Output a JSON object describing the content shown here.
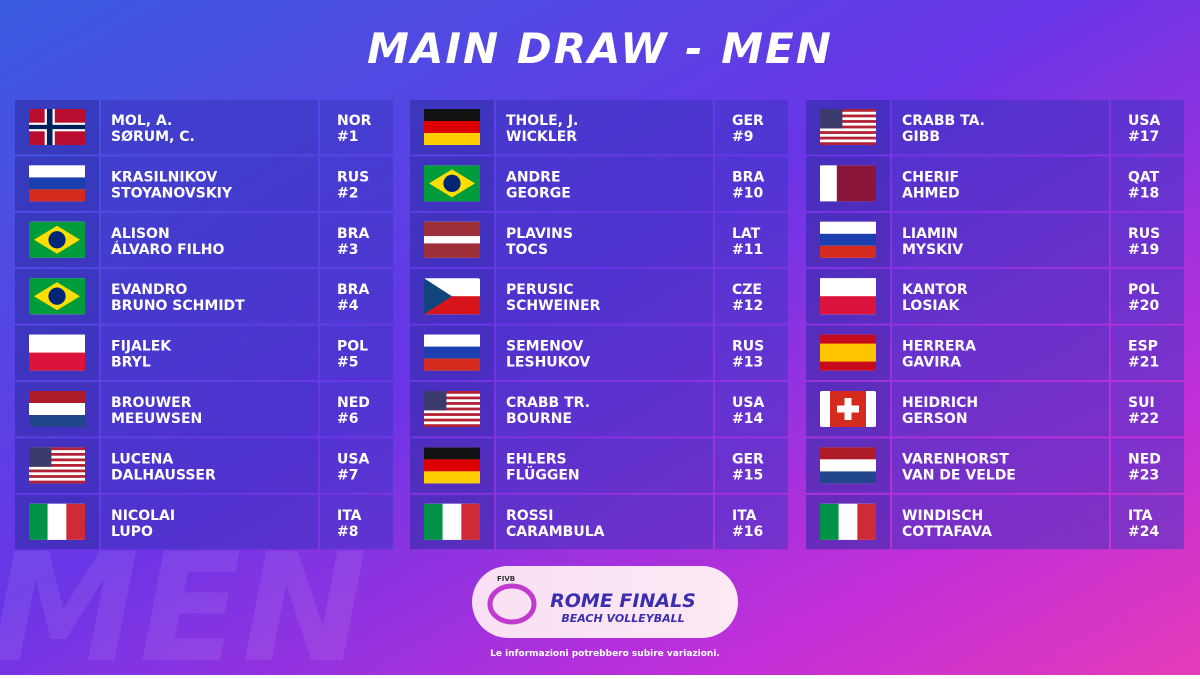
{
  "header": {
    "title": "MAIN DRAW - MEN"
  },
  "columns": [
    {
      "entries": [
        {
          "country": "NOR",
          "seed": "#1",
          "players": [
            "MOL, A.",
            "SØRUM, C."
          ]
        },
        {
          "country": "RUS",
          "seed": "#2",
          "players": [
            "KRASILNIKOV",
            "STOYANOVSKIY"
          ]
        },
        {
          "country": "BRA",
          "seed": "#3",
          "players": [
            "ALISON",
            "ÁLVARO FILHO"
          ]
        },
        {
          "country": "BRA",
          "seed": "#4",
          "players": [
            "EVANDRO",
            "BRUNO SCHMIDT"
          ]
        },
        {
          "country": "POL",
          "seed": "#5",
          "players": [
            "FIJALEK",
            "BRYL"
          ]
        },
        {
          "country": "NED",
          "seed": "#6",
          "players": [
            "BROUWER",
            "MEEUWSEN"
          ]
        },
        {
          "country": "USA",
          "seed": "#7",
          "players": [
            "LUCENA",
            "DALHAUSSER"
          ]
        },
        {
          "country": "ITA",
          "seed": "#8",
          "players": [
            "NICOLAI",
            "LUPO"
          ]
        }
      ]
    },
    {
      "entries": [
        {
          "country": "GER",
          "seed": "#9",
          "players": [
            "THOLE, J.",
            "WICKLER"
          ]
        },
        {
          "country": "BRA",
          "seed": "#10",
          "players": [
            "ANDRE",
            "GEORGE"
          ]
        },
        {
          "country": "LAT",
          "seed": "#11",
          "players": [
            "PLAVINS",
            "TOCS"
          ]
        },
        {
          "country": "CZE",
          "seed": "#12",
          "players": [
            "PERUSIC",
            "SCHWEINER"
          ]
        },
        {
          "country": "RUS",
          "seed": "#13",
          "players": [
            "SEMENOV",
            "LESHUKOV"
          ]
        },
        {
          "country": "USA",
          "seed": "#14",
          "players": [
            "CRABB TR.",
            "BOURNE"
          ]
        },
        {
          "country": "GER",
          "seed": "#15",
          "players": [
            "EHLERS",
            "FLÜGGEN"
          ]
        },
        {
          "country": "ITA",
          "seed": "#16",
          "players": [
            "ROSSI",
            "CARAMBULA"
          ]
        }
      ]
    },
    {
      "entries": [
        {
          "country": "USA",
          "seed": "#17",
          "players": [
            "CRABB TA.",
            "GIBB"
          ]
        },
        {
          "country": "QAT",
          "seed": "#18",
          "players": [
            "CHERIF",
            "AHMED"
          ]
        },
        {
          "country": "RUS",
          "seed": "#19",
          "players": [
            "LIAMIN",
            "MYSKIV"
          ]
        },
        {
          "country": "POL",
          "seed": "#20",
          "players": [
            "KANTOR",
            "LOSIAK"
          ]
        },
        {
          "country": "ESP",
          "seed": "#21",
          "players": [
            "HERRERA",
            "GAVIRA"
          ]
        },
        {
          "country": "SUI",
          "seed": "#22",
          "players": [
            "HEIDRICH",
            "GERSON"
          ]
        },
        {
          "country": "NED",
          "seed": "#23",
          "players": [
            "VARENHORST",
            "VAN DE VELDE"
          ]
        },
        {
          "country": "ITA",
          "seed": "#24",
          "players": [
            "WINDISCH",
            "COTTAFAVA"
          ]
        }
      ]
    }
  ],
  "logo": {
    "org": "FIVB",
    "name": "ROME FINALS",
    "subtitle": "BEACH VOLLEYBALL"
  },
  "watermark": "MEN",
  "footnote": "Le informazioni potrebbero subire variazioni."
}
